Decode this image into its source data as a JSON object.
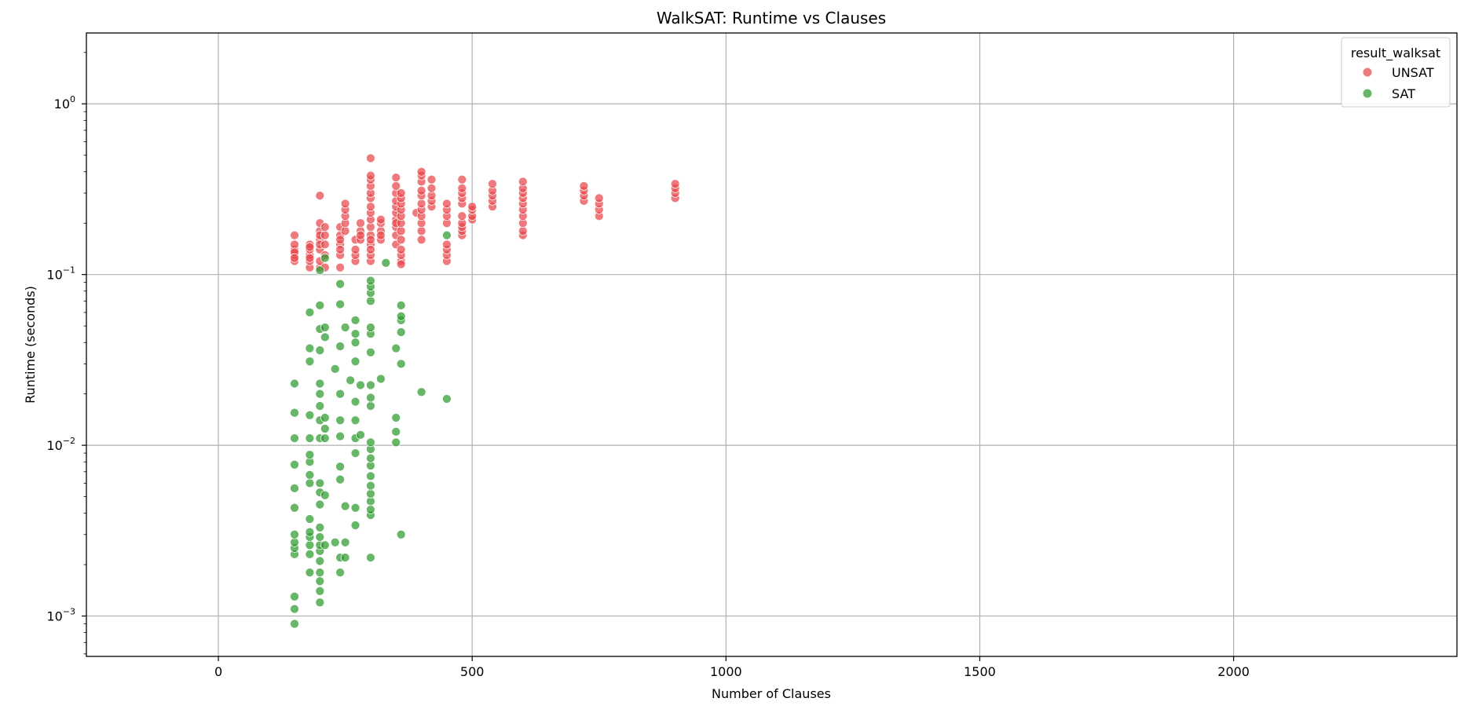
{
  "chart_data": {
    "type": "scatter",
    "title": "WalkSAT: Runtime vs Clauses",
    "xlabel": "Number of Clauses",
    "ylabel": "Runtime (seconds)",
    "xlim": [
      -260,
      2440
    ],
    "ylim": [
      0.00058,
      2.6
    ],
    "yscale": "log",
    "grid": true,
    "xticks": [
      0,
      500,
      1000,
      1500,
      2000
    ],
    "yticks": [
      {
        "value": 0.001,
        "base": "10",
        "exp": "−3"
      },
      {
        "value": 0.01,
        "base": "10",
        "exp": "−2"
      },
      {
        "value": 0.1,
        "base": "10",
        "exp": "−1"
      },
      {
        "value": 1,
        "base": "10",
        "exp": "0"
      }
    ],
    "legend": {
      "title": "result_walksat",
      "position": "top-right",
      "entries": [
        "UNSAT",
        "SAT"
      ]
    },
    "series": [
      {
        "name": "UNSAT",
        "color": "#e8464b",
        "points": [
          [
            150,
            0.12
          ],
          [
            150,
            0.13
          ],
          [
            150,
            0.14
          ],
          [
            150,
            0.15
          ],
          [
            150,
            0.17
          ],
          [
            150,
            0.135
          ],
          [
            150,
            0.125
          ],
          [
            180,
            0.11
          ],
          [
            180,
            0.12
          ],
          [
            180,
            0.13
          ],
          [
            180,
            0.14
          ],
          [
            180,
            0.15
          ],
          [
            180,
            0.125
          ],
          [
            180,
            0.145
          ],
          [
            200,
            0.11
          ],
          [
            200,
            0.12
          ],
          [
            200,
            0.14
          ],
          [
            200,
            0.16
          ],
          [
            200,
            0.18
          ],
          [
            200,
            0.2
          ],
          [
            200,
            0.29
          ],
          [
            200,
            0.15
          ],
          [
            200,
            0.17
          ],
          [
            210,
            0.11
          ],
          [
            210,
            0.13
          ],
          [
            210,
            0.15
          ],
          [
            210,
            0.17
          ],
          [
            210,
            0.19
          ],
          [
            240,
            0.11
          ],
          [
            240,
            0.13
          ],
          [
            240,
            0.15
          ],
          [
            240,
            0.17
          ],
          [
            240,
            0.19
          ],
          [
            240,
            0.14
          ],
          [
            240,
            0.16
          ],
          [
            250,
            0.18
          ],
          [
            250,
            0.2
          ],
          [
            250,
            0.22
          ],
          [
            250,
            0.24
          ],
          [
            250,
            0.26
          ],
          [
            270,
            0.12
          ],
          [
            270,
            0.13
          ],
          [
            270,
            0.14
          ],
          [
            270,
            0.16
          ],
          [
            280,
            0.16
          ],
          [
            280,
            0.18
          ],
          [
            280,
            0.2
          ],
          [
            280,
            0.17
          ],
          [
            300,
            0.12
          ],
          [
            300,
            0.13
          ],
          [
            300,
            0.15
          ],
          [
            300,
            0.17
          ],
          [
            300,
            0.19
          ],
          [
            300,
            0.21
          ],
          [
            300,
            0.23
          ],
          [
            300,
            0.25
          ],
          [
            300,
            0.28
          ],
          [
            300,
            0.3
          ],
          [
            300,
            0.33
          ],
          [
            300,
            0.36
          ],
          [
            300,
            0.38
          ],
          [
            300,
            0.48
          ],
          [
            300,
            0.14
          ],
          [
            300,
            0.16
          ],
          [
            320,
            0.16
          ],
          [
            320,
            0.18
          ],
          [
            320,
            0.2
          ],
          [
            320,
            0.21
          ],
          [
            320,
            0.17
          ],
          [
            350,
            0.15
          ],
          [
            350,
            0.17
          ],
          [
            350,
            0.19
          ],
          [
            350,
            0.21
          ],
          [
            350,
            0.23
          ],
          [
            350,
            0.25
          ],
          [
            350,
            0.27
          ],
          [
            350,
            0.3
          ],
          [
            350,
            0.33
          ],
          [
            350,
            0.37
          ],
          [
            350,
            0.2
          ],
          [
            360,
            0.12
          ],
          [
            360,
            0.13
          ],
          [
            360,
            0.14
          ],
          [
            360,
            0.16
          ],
          [
            360,
            0.18
          ],
          [
            360,
            0.2
          ],
          [
            360,
            0.22
          ],
          [
            360,
            0.24
          ],
          [
            360,
            0.26
          ],
          [
            360,
            0.28
          ],
          [
            360,
            0.3
          ],
          [
            360,
            0.115
          ],
          [
            390,
            0.23
          ],
          [
            400,
            0.16
          ],
          [
            400,
            0.18
          ],
          [
            400,
            0.2
          ],
          [
            400,
            0.22
          ],
          [
            400,
            0.24
          ],
          [
            400,
            0.26
          ],
          [
            400,
            0.29
          ],
          [
            400,
            0.31
          ],
          [
            400,
            0.35
          ],
          [
            400,
            0.38
          ],
          [
            400,
            0.4
          ],
          [
            420,
            0.25
          ],
          [
            420,
            0.27
          ],
          [
            420,
            0.29
          ],
          [
            420,
            0.32
          ],
          [
            420,
            0.36
          ],
          [
            450,
            0.12
          ],
          [
            450,
            0.13
          ],
          [
            450,
            0.14
          ],
          [
            450,
            0.15
          ],
          [
            450,
            0.2
          ],
          [
            450,
            0.22
          ],
          [
            450,
            0.24
          ],
          [
            450,
            0.26
          ],
          [
            480,
            0.17
          ],
          [
            480,
            0.18
          ],
          [
            480,
            0.19
          ],
          [
            480,
            0.2
          ],
          [
            480,
            0.22
          ],
          [
            480,
            0.26
          ],
          [
            480,
            0.28
          ],
          [
            480,
            0.3
          ],
          [
            480,
            0.32
          ],
          [
            480,
            0.36
          ],
          [
            500,
            0.21
          ],
          [
            500,
            0.22
          ],
          [
            500,
            0.24
          ],
          [
            500,
            0.25
          ],
          [
            540,
            0.25
          ],
          [
            540,
            0.27
          ],
          [
            540,
            0.29
          ],
          [
            540,
            0.31
          ],
          [
            540,
            0.34
          ],
          [
            600,
            0.17
          ],
          [
            600,
            0.18
          ],
          [
            600,
            0.2
          ],
          [
            600,
            0.22
          ],
          [
            600,
            0.24
          ],
          [
            600,
            0.26
          ],
          [
            600,
            0.28
          ],
          [
            600,
            0.3
          ],
          [
            600,
            0.32
          ],
          [
            600,
            0.35
          ],
          [
            720,
            0.27
          ],
          [
            720,
            0.29
          ],
          [
            720,
            0.31
          ],
          [
            720,
            0.33
          ],
          [
            750,
            0.22
          ],
          [
            750,
            0.24
          ],
          [
            750,
            0.26
          ],
          [
            750,
            0.28
          ],
          [
            900,
            0.28
          ],
          [
            900,
            0.3
          ],
          [
            900,
            0.32
          ],
          [
            900,
            0.34
          ]
        ]
      },
      {
        "name": "SAT",
        "color": "#2e9a2e",
        "points": [
          [
            150,
            0.0009
          ],
          [
            150,
            0.0011
          ],
          [
            150,
            0.0013
          ],
          [
            150,
            0.0023
          ],
          [
            150,
            0.0025
          ],
          [
            150,
            0.0027
          ],
          [
            150,
            0.003
          ],
          [
            150,
            0.0043
          ],
          [
            150,
            0.0056
          ],
          [
            150,
            0.0077
          ],
          [
            150,
            0.011
          ],
          [
            150,
            0.0155
          ],
          [
            150,
            0.023
          ],
          [
            180,
            0.0018
          ],
          [
            180,
            0.0023
          ],
          [
            180,
            0.0026
          ],
          [
            180,
            0.0029
          ],
          [
            180,
            0.0031
          ],
          [
            180,
            0.0037
          ],
          [
            180,
            0.006
          ],
          [
            180,
            0.0067
          ],
          [
            180,
            0.008
          ],
          [
            180,
            0.0088
          ],
          [
            180,
            0.011
          ],
          [
            180,
            0.015
          ],
          [
            180,
            0.031
          ],
          [
            180,
            0.037
          ],
          [
            180,
            0.06
          ],
          [
            200,
            0.0012
          ],
          [
            200,
            0.0014
          ],
          [
            200,
            0.0016
          ],
          [
            200,
            0.0018
          ],
          [
            200,
            0.0021
          ],
          [
            200,
            0.0024
          ],
          [
            200,
            0.0026
          ],
          [
            200,
            0.0029
          ],
          [
            200,
            0.0033
          ],
          [
            200,
            0.0045
          ],
          [
            200,
            0.0053
          ],
          [
            200,
            0.006
          ],
          [
            200,
            0.011
          ],
          [
            200,
            0.014
          ],
          [
            200,
            0.017
          ],
          [
            200,
            0.02
          ],
          [
            200,
            0.023
          ],
          [
            200,
            0.036
          ],
          [
            200,
            0.048
          ],
          [
            200,
            0.066
          ],
          [
            200,
            0.106
          ],
          [
            210,
            0.0026
          ],
          [
            210,
            0.0051
          ],
          [
            210,
            0.011
          ],
          [
            210,
            0.0125
          ],
          [
            210,
            0.0145
          ],
          [
            210,
            0.043
          ],
          [
            210,
            0.049
          ],
          [
            210,
            0.125
          ],
          [
            230,
            0.0027
          ],
          [
            230,
            0.028
          ],
          [
            240,
            0.0018
          ],
          [
            240,
            0.0022
          ],
          [
            240,
            0.0063
          ],
          [
            240,
            0.0075
          ],
          [
            240,
            0.0113
          ],
          [
            240,
            0.014
          ],
          [
            240,
            0.02
          ],
          [
            240,
            0.038
          ],
          [
            240,
            0.067
          ],
          [
            240,
            0.088
          ],
          [
            250,
            0.0022
          ],
          [
            250,
            0.0027
          ],
          [
            250,
            0.0044
          ],
          [
            250,
            0.049
          ],
          [
            260,
            0.024
          ],
          [
            270,
            0.0034
          ],
          [
            270,
            0.0043
          ],
          [
            270,
            0.009
          ],
          [
            270,
            0.011
          ],
          [
            270,
            0.014
          ],
          [
            270,
            0.018
          ],
          [
            270,
            0.031
          ],
          [
            270,
            0.04
          ],
          [
            270,
            0.045
          ],
          [
            270,
            0.054
          ],
          [
            280,
            0.0115
          ],
          [
            280,
            0.0225
          ],
          [
            300,
            0.0022
          ],
          [
            300,
            0.0039
          ],
          [
            300,
            0.0042
          ],
          [
            300,
            0.0047
          ],
          [
            300,
            0.0052
          ],
          [
            300,
            0.0058
          ],
          [
            300,
            0.0066
          ],
          [
            300,
            0.0076
          ],
          [
            300,
            0.0084
          ],
          [
            300,
            0.0095
          ],
          [
            300,
            0.0104
          ],
          [
            300,
            0.017
          ],
          [
            300,
            0.019
          ],
          [
            300,
            0.0225
          ],
          [
            300,
            0.035
          ],
          [
            300,
            0.045
          ],
          [
            300,
            0.049
          ],
          [
            300,
            0.07
          ],
          [
            300,
            0.078
          ],
          [
            300,
            0.085
          ],
          [
            300,
            0.092
          ],
          [
            320,
            0.0245
          ],
          [
            330,
            0.117
          ],
          [
            350,
            0.0104
          ],
          [
            350,
            0.012
          ],
          [
            350,
            0.0145
          ],
          [
            350,
            0.037
          ],
          [
            360,
            0.003
          ],
          [
            360,
            0.03
          ],
          [
            360,
            0.046
          ],
          [
            360,
            0.054
          ],
          [
            360,
            0.057
          ],
          [
            360,
            0.066
          ],
          [
            400,
            0.0205
          ],
          [
            450,
            0.0187
          ],
          [
            450,
            0.17
          ]
        ]
      }
    ]
  }
}
